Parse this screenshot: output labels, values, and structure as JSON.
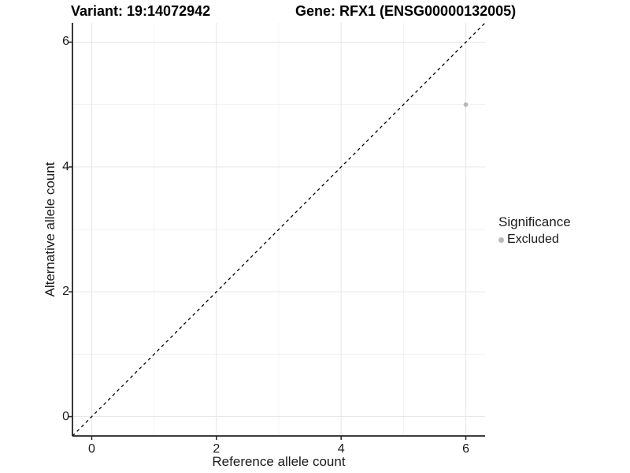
{
  "header": {
    "variant_title": "Variant: 19:14072942",
    "gene_title": "Gene: RFX1 (ENSG00000132005)"
  },
  "chart_data": {
    "type": "scatter",
    "title": "Variant: 19:14072942   Gene: RFX1 (ENSG00000132005)",
    "xlabel": "Reference allele count",
    "ylabel": "Alternative allele count",
    "xlim": [
      -0.309,
      6.309
    ],
    "ylim": [
      -0.309,
      6.309
    ],
    "x_ticks": [
      0,
      2,
      4,
      6
    ],
    "y_ticks": [
      0,
      2,
      4,
      6
    ],
    "x_minor_ticks": [
      1,
      3,
      5
    ],
    "y_minor_ticks": [
      1,
      3,
      5
    ],
    "grid": "major+minor",
    "points": [
      {
        "x": 6,
        "y": 5,
        "series": "Excluded"
      }
    ],
    "reference_line": {
      "type": "identity y=x",
      "style": "dashed",
      "color": "#000000"
    },
    "legend_position": "right"
  },
  "legend": {
    "title": "Significance",
    "items": [
      {
        "label": "Excluded",
        "color": "#b9b9b9",
        "marker": "circle"
      }
    ]
  },
  "colors": {
    "background": "#ffffff",
    "point": "#b9b9b9",
    "grid_major": "#e6e6e6",
    "grid_minor": "#f1f1f1",
    "axis_line": "#222222",
    "tick": "#222222",
    "text": "#1a1a1a",
    "reference_line": "#000000"
  }
}
